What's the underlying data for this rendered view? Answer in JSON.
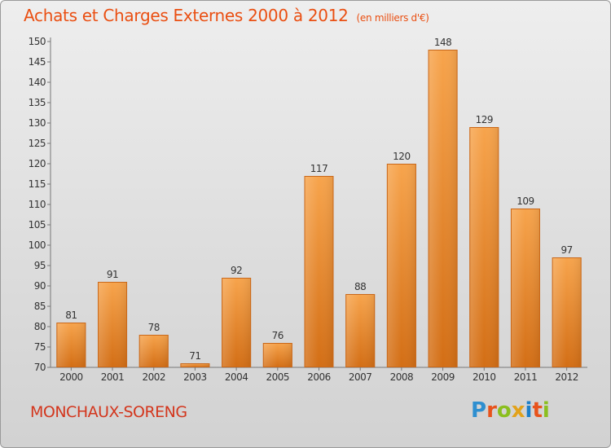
{
  "header": {
    "title": "Achats et Charges Externes 2000 à 2012",
    "unit": "(en milliers d'€)"
  },
  "footer": {
    "commune": "MONCHAUX-SORENG",
    "brand_letters": [
      "P",
      "r",
      "o",
      "x",
      "i",
      "t",
      "i"
    ],
    "brand_colors": [
      "#2e8fd0",
      "#e8531c",
      "#8bbf1f",
      "#e2a21a",
      "#1c7fc8",
      "#e8531c",
      "#8bbf1f"
    ]
  },
  "chart_data": {
    "type": "bar",
    "title": "Achats et Charges Externes 2000 à 2012",
    "subtitle": "(en milliers d'€)",
    "categories": [
      "2000",
      "2001",
      "2002",
      "2003",
      "2004",
      "2005",
      "2006",
      "2007",
      "2008",
      "2009",
      "2010",
      "2011",
      "2012"
    ],
    "values": [
      81,
      91,
      78,
      71,
      92,
      76,
      117,
      88,
      120,
      148,
      129,
      109,
      97
    ],
    "ylim": [
      70,
      150
    ],
    "yticks": [
      70,
      75,
      80,
      85,
      90,
      95,
      100,
      105,
      110,
      115,
      120,
      125,
      130,
      135,
      140,
      145,
      150
    ],
    "grid": false,
    "legend": "none",
    "bar_color": "#f39a3e"
  }
}
